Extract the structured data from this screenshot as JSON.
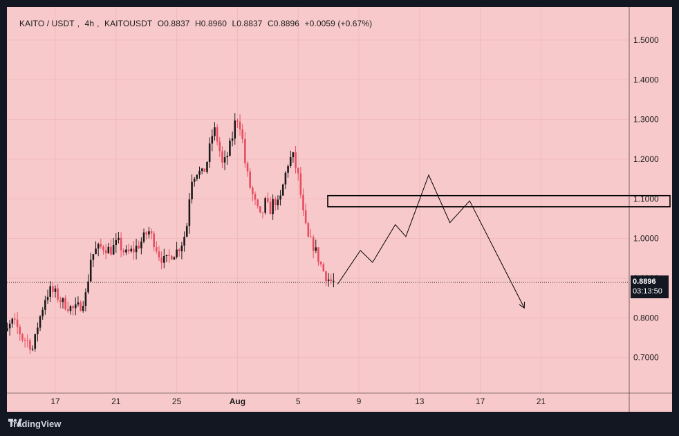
{
  "header": {
    "symbol": "KAITO / USDT",
    "interval": "4h",
    "ticker": "KAITOUSDT",
    "open": "O0.8837",
    "high": "H0.8960",
    "low": "L0.8837",
    "close": "C0.8896",
    "change": "+0.0059 (+0.67%)"
  },
  "price_tag": {
    "price": "0.8896",
    "countdown": "03:13:50"
  },
  "footer": {
    "brand": "TradingView"
  },
  "colors": {
    "background": "#f8c9cb",
    "up_candle": "#1a1a1a",
    "down_candle": "#e84c5f",
    "frame": "#131722"
  },
  "chart_data": {
    "type": "candlestick",
    "title": "KAITO / USDT, 4h, KAITOUSDT",
    "y_ticks": [
      "0.7000",
      "0.8000",
      "0.9000",
      "1.0000",
      "1.1000",
      "1.2000",
      "1.3000",
      "1.4000",
      "1.5000"
    ],
    "x_ticks": [
      "17",
      "21",
      "25",
      "Aug",
      "5",
      "9",
      "13",
      "17",
      "21"
    ],
    "ylim": [
      0.62,
      1.59
    ],
    "last_price": 0.8896,
    "price_path": [
      [
        13.0,
        0.65
      ],
      [
        13.3,
        0.7
      ],
      [
        13.6,
        0.75
      ],
      [
        13.9,
        0.76
      ],
      [
        14.3,
        0.79
      ],
      [
        14.6,
        0.78
      ],
      [
        15.0,
        0.75
      ],
      [
        15.4,
        0.74
      ],
      [
        15.7,
        0.72
      ],
      [
        16.0,
        0.78
      ],
      [
        16.5,
        0.85
      ],
      [
        16.8,
        0.87
      ],
      [
        17.2,
        0.86
      ],
      [
        17.6,
        0.84
      ],
      [
        18.0,
        0.83
      ],
      [
        18.4,
        0.82
      ],
      [
        18.8,
        0.83
      ],
      [
        19.2,
        0.86
      ],
      [
        19.5,
        0.95
      ],
      [
        19.8,
        0.97
      ],
      [
        20.3,
        0.98
      ],
      [
        20.8,
        0.97
      ],
      [
        21.3,
        0.99
      ],
      [
        21.8,
        0.96
      ],
      [
        22.3,
        0.97
      ],
      [
        22.8,
        0.99
      ],
      [
        23.3,
        1.02
      ],
      [
        23.7,
        0.99
      ],
      [
        24.0,
        0.96
      ],
      [
        24.4,
        0.94
      ],
      [
        24.8,
        0.96
      ],
      [
        25.2,
        0.97
      ],
      [
        25.5,
        0.99
      ],
      [
        25.8,
        1.02
      ],
      [
        26.1,
        1.15
      ],
      [
        26.5,
        1.17
      ],
      [
        26.9,
        1.16
      ],
      [
        27.2,
        1.2
      ],
      [
        27.6,
        1.28
      ],
      [
        27.9,
        1.24
      ],
      [
        28.2,
        1.18
      ],
      [
        28.5,
        1.21
      ],
      [
        28.8,
        1.25
      ],
      [
        29.1,
        1.31
      ],
      [
        29.4,
        1.28
      ],
      [
        29.7,
        1.18
      ],
      [
        30.0,
        1.13
      ],
      [
        30.4,
        1.08
      ],
      [
        30.7,
        1.05
      ],
      [
        31.0,
        1.09
      ],
      [
        31.3,
        1.07
      ],
      [
        31.6,
        1.1
      ],
      [
        31.9,
        1.08
      ],
      [
        32.2,
        1.14
      ],
      [
        32.5,
        1.19
      ],
      [
        32.8,
        1.21
      ],
      [
        33.2,
        1.15
      ],
      [
        33.5,
        1.06
      ],
      [
        33.8,
        1.0
      ],
      [
        34.2,
        0.98
      ],
      [
        34.5,
        0.95
      ],
      [
        34.8,
        0.92
      ],
      [
        35.1,
        0.9
      ],
      [
        35.4,
        0.89
      ]
    ],
    "annotations": {
      "resistance_box": {
        "price_top": 1.108,
        "price_bottom": 1.08,
        "date_start": 34.95,
        "date_end": 57.5
      },
      "projection_path": [
        [
          35.6,
          0.885
        ],
        [
          37.1,
          0.97
        ],
        [
          37.9,
          0.94
        ],
        [
          39.4,
          1.035
        ],
        [
          40.1,
          1.005
        ],
        [
          41.6,
          1.16
        ],
        [
          43.0,
          1.04
        ],
        [
          44.3,
          1.095
        ],
        [
          47.9,
          0.825
        ]
      ]
    }
  }
}
